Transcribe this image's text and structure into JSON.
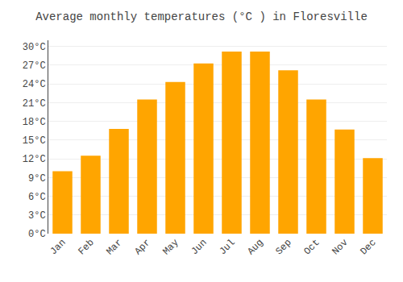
{
  "chart_data": {
    "type": "bar",
    "title": "Average monthly temperatures (°C ) in Floresville",
    "categories": [
      "Jan",
      "Feb",
      "Mar",
      "Apr",
      "May",
      "Jun",
      "Jul",
      "Aug",
      "Sep",
      "Oct",
      "Nov",
      "Dec"
    ],
    "values": [
      10.0,
      12.5,
      16.8,
      21.5,
      24.3,
      27.3,
      29.2,
      29.2,
      26.2,
      21.5,
      16.7,
      12.1
    ],
    "color": "#FFA500",
    "ylim": [
      0,
      31
    ],
    "yticks": [
      {
        "value": 0,
        "label": "0°C"
      },
      {
        "value": 3,
        "label": "3°C"
      },
      {
        "value": 6,
        "label": "6°C"
      },
      {
        "value": 9,
        "label": "9°C"
      },
      {
        "value": 12,
        "label": "12°C"
      },
      {
        "value": 15,
        "label": "15°C"
      },
      {
        "value": 18,
        "label": "18°C"
      },
      {
        "value": 21,
        "label": "21°C"
      },
      {
        "value": 24,
        "label": "24°C"
      },
      {
        "value": 27,
        "label": "27°C"
      },
      {
        "value": 30,
        "label": "30°C"
      }
    ],
    "grid": true
  }
}
